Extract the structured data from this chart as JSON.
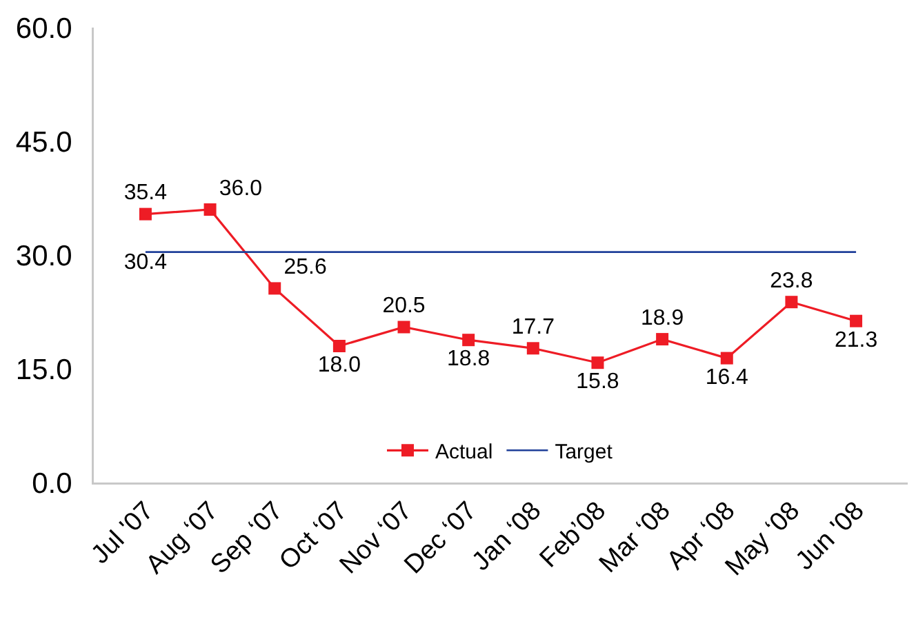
{
  "chart_data": {
    "type": "line",
    "categories": [
      "Jul '07",
      "Aug ‘07",
      "Sep ‘07",
      "Oct ‘07",
      "Nov ‘07",
      "Dec ‘07",
      "Jan ‘08",
      "Feb’08",
      "Mar ‘08",
      "Apr ‘08",
      "May ‘08",
      "Jun '08"
    ],
    "series": [
      {
        "name": "Actual",
        "color": "#ee1c25",
        "marker": "square",
        "values": [
          35.4,
          36.0,
          25.6,
          18.0,
          20.5,
          18.8,
          17.7,
          15.8,
          18.9,
          16.4,
          23.8,
          21.3
        ],
        "value_labels": [
          "35.4",
          "36.0",
          "25.6",
          "18.0",
          "20.5",
          "18.8",
          "17.7",
          "15.8",
          "18.9",
          "16.4",
          "23.8",
          "21.3"
        ]
      },
      {
        "name": "Target",
        "color": "#1f3f99",
        "marker": "none",
        "values": [
          30.4,
          30.4,
          30.4,
          30.4,
          30.4,
          30.4,
          30.4,
          30.4,
          30.4,
          30.4,
          30.4,
          30.4
        ],
        "value_labels": [
          "30.4",
          null,
          null,
          null,
          null,
          null,
          null,
          null,
          null,
          null,
          null,
          null
        ]
      }
    ],
    "ylim": [
      0,
      60
    ],
    "yticks": [
      {
        "value": 0,
        "label": "0.0"
      },
      {
        "value": 15,
        "label": "15.0"
      },
      {
        "value": 30,
        "label": "30.0"
      },
      {
        "value": 45,
        "label": "45.0"
      },
      {
        "value": 60,
        "label": "60.0"
      }
    ],
    "grid": false,
    "legend": "bottom",
    "line_style": "solid"
  }
}
